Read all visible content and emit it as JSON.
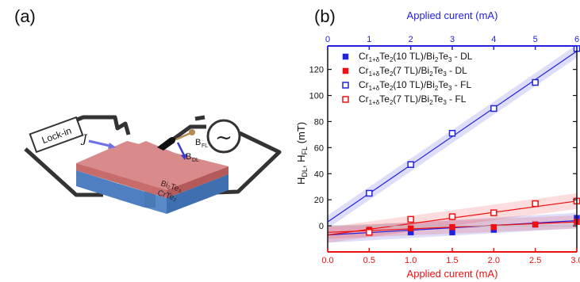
{
  "panels": {
    "a": "(a)",
    "b": "(b)"
  },
  "schematic": {
    "lockin_label": "Lock-in",
    "current_symbol": "J",
    "b_fl_label": "B",
    "b_fl_sub": "FL",
    "b_dl_label": "B",
    "b_dl_sub": "DL",
    "top_layer": "Bi₂Te₃",
    "bottom_layer": "CrTe₂",
    "source_symbol": "~",
    "colors": {
      "top_layer": "#c76b6b",
      "bottom_layer": "#4f7fc0",
      "wire": "#333333",
      "vector_fl": "#b48a55",
      "vector_dl": "#3a3ad0"
    }
  },
  "chart_data": {
    "type": "scatter",
    "x_bottom": {
      "label": "Applied curent (mA)",
      "lim": [
        0,
        3
      ],
      "ticks": [
        0.0,
        0.5,
        1.0,
        1.5,
        2.0,
        2.5,
        3.0
      ],
      "color": "#ee1111"
    },
    "x_top": {
      "label": "Applied curent (mA)",
      "lim": [
        0,
        6
      ],
      "ticks": [
        0,
        1,
        2,
        3,
        4,
        5,
        6
      ],
      "color": "#2222dd"
    },
    "y": {
      "label": "H",
      "label_sub1": "DL",
      "label_mid": ", H",
      "label_sub2": "FL",
      "label_unit": " (mT)",
      "lim": [
        -20,
        138
      ],
      "ticks": [
        0,
        20,
        40,
        60,
        80,
        100,
        120
      ]
    },
    "legend": {
      "placement": "top-left",
      "entries": [
        {
          "pre": "Cr",
          "sub1": "1+δ",
          "mid1": "Te",
          "sub2": "2",
          "mid2": "(10 TL)/Bi",
          "sub3": "2",
          "mid3": "Te",
          "sub4": "3",
          "post": " - DL"
        },
        {
          "pre": "Cr",
          "sub1": "1+δ",
          "mid1": "Te",
          "sub2": "2",
          "mid2": "(7 TL)/Bi",
          "sub3": "2",
          "mid3": "Te",
          "sub4": "3",
          "post": " - DL"
        },
        {
          "pre": "Cr",
          "sub1": "1+δ",
          "mid1": "Te",
          "sub2": "2",
          "mid2": "(10 TL)/Bi",
          "sub3": "2",
          "mid3": "Te",
          "sub4": "3",
          "post": " - FL"
        },
        {
          "pre": "Cr",
          "sub1": "1+δ",
          "mid1": "Te",
          "sub2": "2",
          "mid2": "(7 TL)/Bi",
          "sub3": "2",
          "mid3": "Te",
          "sub4": "3",
          "post": " - FL"
        }
      ]
    },
    "series": [
      {
        "color": "#2222dd",
        "marker": "filled-square",
        "axis": "top",
        "x": [
          1,
          2,
          3,
          4,
          5,
          6
        ],
        "y": [
          -4,
          -5,
          -5,
          -3,
          1,
          6
        ],
        "fit": [
          -7,
          4
        ],
        "band": 6
      },
      {
        "color": "#ee1111",
        "marker": "filled-square",
        "axis": "bottom",
        "x": [
          0.5,
          1.0,
          1.5,
          2.0,
          2.5,
          3.0
        ],
        "y": [
          -3,
          -2,
          -1,
          -1,
          1,
          3
        ],
        "fit": [
          -5,
          3
        ],
        "band": 5
      },
      {
        "color": "#2222dd",
        "marker": "open-square",
        "axis": "top",
        "x": [
          1,
          2,
          3,
          4,
          5,
          6
        ],
        "y": [
          25,
          47,
          71,
          90,
          110,
          136
        ],
        "fit": [
          3,
          134
        ],
        "band": 5
      },
      {
        "color": "#ee1111",
        "marker": "open-square",
        "axis": "bottom",
        "x": [
          0.5,
          1.0,
          1.5,
          2.0,
          2.5,
          3.0
        ],
        "y": [
          -5,
          5,
          7,
          10,
          17,
          19
        ],
        "fit": [
          -7,
          19
        ],
        "band": 6
      }
    ]
  }
}
